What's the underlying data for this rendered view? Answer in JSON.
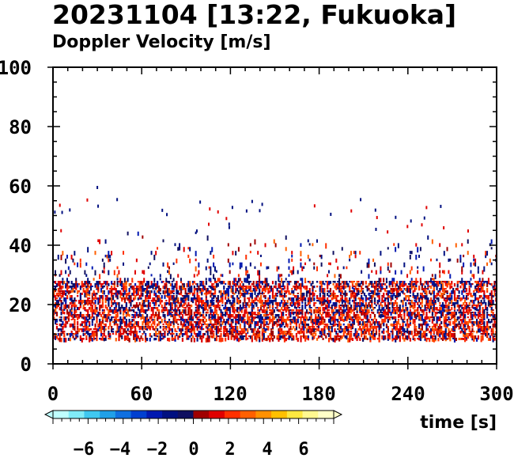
{
  "chart_data": {
    "type": "heatmap",
    "title": "20231104 [13:22, Fukuoka]",
    "subtitle": "Doppler Velocity [m/s]",
    "xlabel": "time [s]",
    "ylabel": "",
    "xlim": [
      0,
      300
    ],
    "ylim": [
      0,
      100
    ],
    "xticks": [
      "0",
      "60",
      "120",
      "180",
      "240",
      "300"
    ],
    "yticks": [
      "0",
      "20",
      "40",
      "60",
      "80",
      "100"
    ],
    "colorbar": {
      "range": [
        -8,
        8
      ],
      "ticks": [
        "−6",
        "−4",
        "−2",
        "0",
        "2",
        "4",
        "6"
      ],
      "colors": [
        "#bfffff",
        "#80ecf8",
        "#40c8f0",
        "#20a0e8",
        "#1070e0",
        "#0040d0",
        "#0018b0",
        "#001080",
        "#101060",
        "#a00000",
        "#e00000",
        "#ff3000",
        "#ff6000",
        "#ff9000",
        "#ffc000",
        "#ffe840",
        "#fff890",
        "#ffffc8"
      ]
    },
    "data_region": {
      "height_range": [
        8,
        28
      ],
      "sparse_height_range": [
        28,
        45
      ],
      "outlier_max_height": 60,
      "dominant_sign": "positive"
    }
  }
}
